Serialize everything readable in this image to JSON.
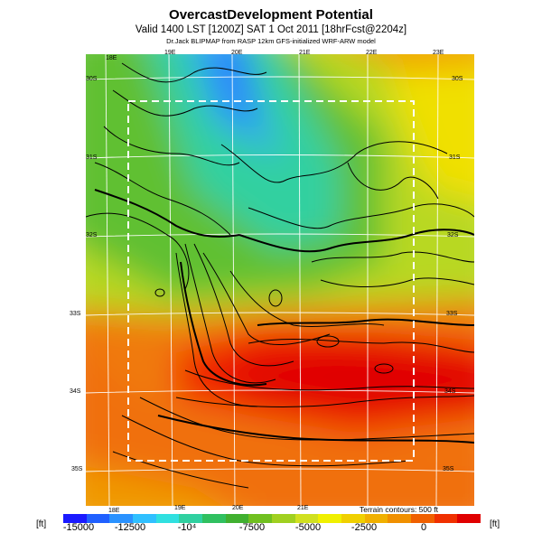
{
  "title": "OvercastDevelopment Potential",
  "subtitle": "Valid 1400 LST [1200Z] SAT 1 Oct 2011 [18hrFcst@2204z]",
  "credit": "Dr.Jack BLIPMAP from RASP 12km GFS-initialized WRF-ARW model",
  "top_lon_labels": [
    "18E",
    "19E",
    "20E",
    "21E",
    "22E",
    "23E"
  ],
  "bottom_lon_labels": [
    "18E",
    "19E",
    "20E",
    "21E"
  ],
  "left_lat_labels": [
    "30S",
    "31S",
    "32S",
    "33S",
    "34S",
    "35S"
  ],
  "right_lat_labels": [
    "30S",
    "31S",
    "32S",
    "33S",
    "34S",
    "35S"
  ],
  "terrain_note": "Terrain contours: 500 ft",
  "unit_left": "[ft]",
  "unit_right": "[ft]",
  "colorbar": {
    "ticks": [
      "-15000",
      "-12500",
      "-10⁴",
      "-7500",
      "-5000",
      "-2500",
      "0"
    ],
    "colors": [
      "#1a1aff",
      "#2060ff",
      "#2a92ff",
      "#30c0ff",
      "#30e0e0",
      "#30d0a0",
      "#30c060",
      "#40b030",
      "#70c020",
      "#a0d020",
      "#d0e020",
      "#f0f000",
      "#f0d000",
      "#f0b000",
      "#f09000",
      "#f06000",
      "#f03000",
      "#e00000"
    ]
  }
}
